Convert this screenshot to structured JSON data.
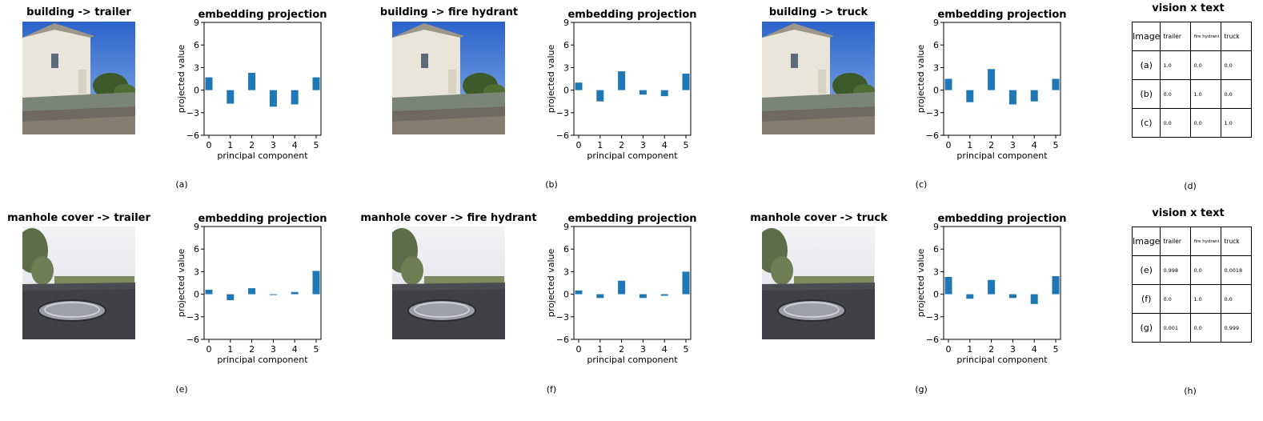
{
  "colors": {
    "bar": "#1f77b4",
    "axis": "#000000"
  },
  "panels_top": [
    {
      "title": "building -> trailer",
      "caption": "(a)"
    },
    {
      "title": "building -> fire hydrant",
      "caption": "(b)"
    },
    {
      "title": "building -> truck",
      "caption": "(c)"
    }
  ],
  "panels_bottom": [
    {
      "title": "manhole cover -> trailer",
      "caption": "(e)"
    },
    {
      "title": "manhole cover -> fire hydrant",
      "caption": "(f)"
    },
    {
      "title": "manhole cover -> truck",
      "caption": "(g)"
    }
  ],
  "table_top": {
    "title": "vision x text",
    "caption": "(d)",
    "header": [
      "Image",
      "trailer",
      "fire hydrant",
      "truck"
    ],
    "rows": [
      [
        "(a)",
        "1.0",
        "0.0",
        "0.0"
      ],
      [
        "(b)",
        "0.0",
        "1.0",
        "0.0"
      ],
      [
        "(c)",
        "0.0",
        "0.0",
        "1.0"
      ]
    ]
  },
  "table_bottom": {
    "title": "vision x text",
    "caption": "(h)",
    "header": [
      "Image",
      "trailer",
      "fire hydrant",
      "truck"
    ],
    "rows": [
      [
        "(e)",
        "0.998",
        "0.0",
        "0.0018"
      ],
      [
        "(f)",
        "0.0",
        "1.0",
        "0.0"
      ],
      [
        "(g)",
        "0.001",
        "0.0",
        "0.999"
      ]
    ]
  },
  "chart_data": [
    {
      "type": "bar",
      "title": "embedding projection",
      "xlabel": "principal component",
      "ylabel": "projected value",
      "categories": [
        0,
        1,
        2,
        3,
        4,
        5
      ],
      "values": [
        1.7,
        -1.8,
        2.3,
        -2.2,
        -1.9,
        1.7
      ],
      "ylim": [
        -6,
        9
      ],
      "yticks": [
        -6,
        -3,
        0,
        3,
        6,
        9
      ]
    },
    {
      "type": "bar",
      "title": "embedding projection",
      "xlabel": "principal component",
      "ylabel": "projected value",
      "categories": [
        0,
        1,
        2,
        3,
        4,
        5
      ],
      "values": [
        1.0,
        -1.5,
        2.5,
        -0.6,
        -0.8,
        2.2
      ],
      "ylim": [
        -6,
        9
      ],
      "yticks": [
        -6,
        -3,
        0,
        3,
        6,
        9
      ]
    },
    {
      "type": "bar",
      "title": "embedding projection",
      "xlabel": "principal component",
      "ylabel": "projected value",
      "categories": [
        0,
        1,
        2,
        3,
        4,
        5
      ],
      "values": [
        1.5,
        -1.6,
        2.8,
        -1.9,
        -1.5,
        1.5
      ],
      "ylim": [
        -6,
        9
      ],
      "yticks": [
        -6,
        -3,
        0,
        3,
        6,
        9
      ]
    },
    {
      "type": "bar",
      "title": "embedding projection",
      "xlabel": "principal component",
      "ylabel": "projected value",
      "categories": [
        0,
        1,
        2,
        3,
        4,
        5
      ],
      "values": [
        0.6,
        -0.8,
        0.8,
        -0.1,
        0.3,
        3.1
      ],
      "ylim": [
        -6,
        9
      ],
      "yticks": [
        -6,
        -3,
        0,
        3,
        6,
        9
      ]
    },
    {
      "type": "bar",
      "title": "embedding projection",
      "xlabel": "principal component",
      "ylabel": "projected value",
      "categories": [
        0,
        1,
        2,
        3,
        4,
        5
      ],
      "values": [
        0.5,
        -0.5,
        1.8,
        -0.5,
        -0.2,
        3.0
      ],
      "ylim": [
        -6,
        9
      ],
      "yticks": [
        -6,
        -3,
        0,
        3,
        6,
        9
      ]
    },
    {
      "type": "bar",
      "title": "embedding projection",
      "xlabel": "principal component",
      "ylabel": "projected value",
      "categories": [
        0,
        1,
        2,
        3,
        4,
        5
      ],
      "values": [
        2.3,
        -0.6,
        1.9,
        -0.5,
        -1.3,
        2.4
      ],
      "ylim": [
        -6,
        9
      ],
      "yticks": [
        -6,
        -3,
        0,
        3,
        6,
        9
      ]
    }
  ]
}
